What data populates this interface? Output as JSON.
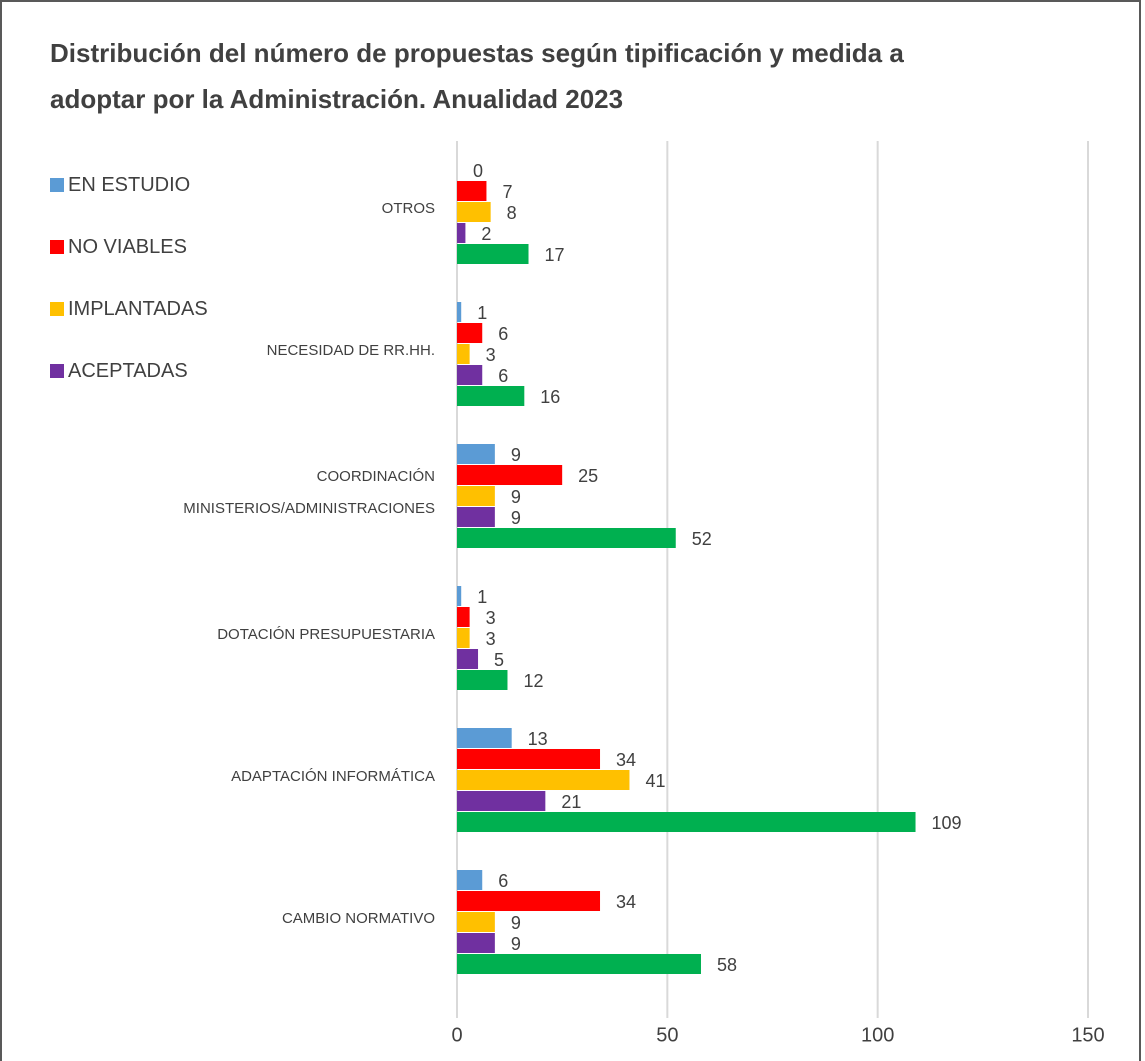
{
  "chart_data": {
    "type": "bar",
    "orientation": "horizontal",
    "title": "Distribución del número de propuestas según tipificación y medida a adoptar por la Administración. Anualidad 2023",
    "categories": [
      "OTROS",
      "NECESIDAD DE RR.HH.",
      "COORDINACIÓN MINISTERIOS/ADMINISTRACIONES",
      "DOTACIÓN PRESUPUESTARIA",
      "ADAPTACIÓN INFORMÁTICA",
      "CAMBIO NORMATIVO"
    ],
    "series": [
      {
        "name": "EN ESTUDIO",
        "color": "#5b9bd5",
        "values": [
          0,
          1,
          9,
          1,
          13,
          6
        ]
      },
      {
        "name": "NO VIABLES",
        "color": "#ff0000",
        "values": [
          7,
          6,
          25,
          3,
          34,
          34
        ]
      },
      {
        "name": "IMPLANTADAS",
        "color": "#ffc000",
        "values": [
          8,
          3,
          9,
          3,
          41,
          9
        ]
      },
      {
        "name": "ACEPTADAS",
        "color": "#7030a0",
        "values": [
          2,
          6,
          9,
          5,
          21,
          9
        ]
      },
      {
        "color": "#00b050",
        "values": [
          17,
          16,
          52,
          12,
          109,
          58
        ]
      }
    ],
    "xlim": [
      0,
      150
    ],
    "xticks": [
      0,
      50,
      100,
      150
    ],
    "grid": true,
    "legend": "left"
  }
}
